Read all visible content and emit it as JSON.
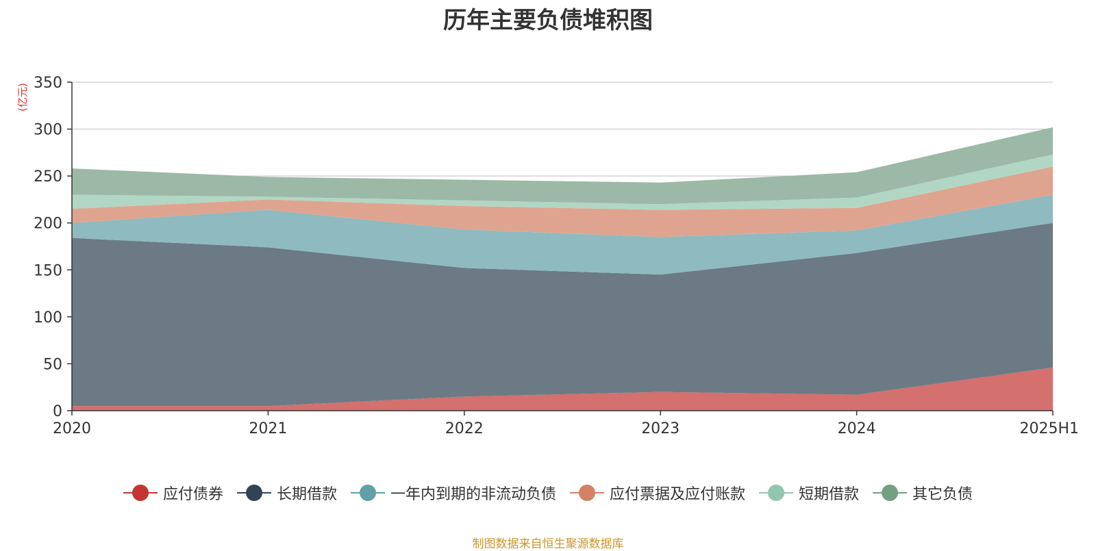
{
  "chart_data": {
    "type": "area",
    "stacked": true,
    "title": "历年主要负债堆积图",
    "ylabel": "(亿元)",
    "xlabel": "",
    "categories": [
      "2020",
      "2021",
      "2022",
      "2023",
      "2024",
      "2025H1"
    ],
    "ylim": [
      0,
      350
    ],
    "yticks": [
      0,
      50,
      100,
      150,
      200,
      250,
      300,
      350
    ],
    "grid": true,
    "legend_position": "bottom",
    "series": [
      {
        "name": "应付债券",
        "values": [
          5,
          5,
          15,
          20,
          17,
          46
        ],
        "color": "#c23531",
        "fill": "#d4706e"
      },
      {
        "name": "长期借款",
        "values": [
          179,
          169,
          137,
          125,
          151,
          154
        ],
        "color": "#2f4554",
        "fill": "#6b7a85"
      },
      {
        "name": "一年内到期的非流动负债",
        "values": [
          16,
          40,
          41,
          40,
          24,
          30
        ],
        "color": "#61a0a8",
        "fill": "#8fbac0"
      },
      {
        "name": "应付票据及应付账款",
        "values": [
          15,
          11,
          25,
          29,
          24,
          30
        ],
        "color": "#d48265",
        "fill": "#dfa48f"
      },
      {
        "name": "短期借款",
        "values": [
          15,
          3,
          6,
          6,
          11,
          13
        ],
        "color": "#91c7ae",
        "fill": "#b1d7c4"
      },
      {
        "name": "其它负债",
        "values": [
          28,
          21,
          22,
          23,
          27,
          29
        ],
        "color": "#749f83",
        "fill": "#9cb8a6"
      }
    ]
  },
  "source_note": "制图数据来自恒生聚源数据库"
}
